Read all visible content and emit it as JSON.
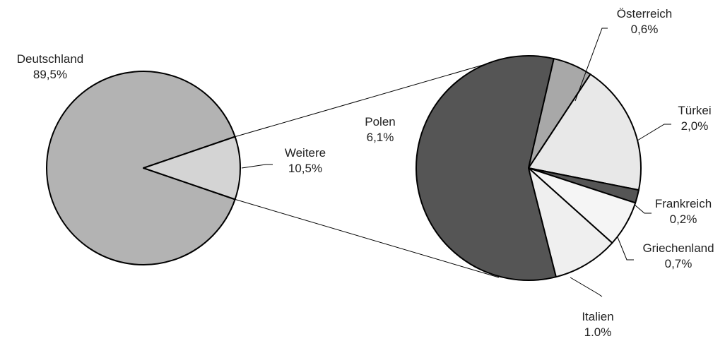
{
  "chart_data": {
    "type": "pie",
    "subtype": "pie-of-pie",
    "main_pie": {
      "slices": [
        {
          "name": "Deutschland",
          "value": 89.5,
          "label": "89,5%",
          "color": "#b3b3b3"
        },
        {
          "name": "Weitere",
          "value": 10.5,
          "label": "10,5%",
          "color": "#d4d4d4"
        }
      ]
    },
    "secondary_pie": {
      "expands": "Weitere",
      "slices": [
        {
          "name": "Polen",
          "value": 6.1,
          "label": "6,1%",
          "color": "#555555"
        },
        {
          "name": "Österreich",
          "value": 0.6,
          "label": "0,6%",
          "color": "#a8a8a8"
        },
        {
          "name": "Türkei",
          "value": 2.0,
          "label": "2,0%",
          "color": "#e8e8e8"
        },
        {
          "name": "Frankreich",
          "value": 0.2,
          "label": "0,2%",
          "color": "#555555"
        },
        {
          "name": "Griechenland",
          "value": 0.7,
          "label": "0,7%",
          "color": "#f5f5f5"
        },
        {
          "name": "Italien",
          "value": 1.0,
          "label": "1.0%",
          "color": "#efefef"
        }
      ]
    }
  }
}
